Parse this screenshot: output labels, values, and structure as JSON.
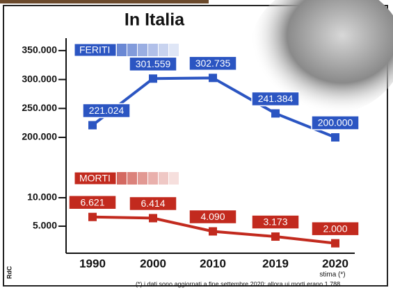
{
  "title": "In Italia",
  "footnote": "(*) i dati sono aggiornati a fine settembre 2020: allora ui morti erano 1.788",
  "credit": "RdC",
  "chart_data": {
    "type": "line",
    "categories": [
      "1990",
      "2000",
      "2010",
      "2019",
      "2020"
    ],
    "category_note": "stima (*)",
    "series": [
      {
        "name": "FERITI",
        "color": "#2b55c2",
        "axis": "y",
        "values": [
          221024,
          301559,
          302735,
          241384,
          200000
        ],
        "value_labels": [
          "221.024",
          "301.559",
          "302.735",
          "241.384",
          "200.000"
        ]
      },
      {
        "name": "MORTI",
        "color": "#c22a1e",
        "axis": "y2",
        "values": [
          6621,
          6414,
          4090,
          3173,
          2000
        ],
        "value_labels": [
          "6.621",
          "6.414",
          "4.090",
          "3.173",
          "2.000"
        ]
      }
    ],
    "ylim": [
      185000,
      365000
    ],
    "yticks": [
      {
        "value": 200000,
        "label": "200.000"
      },
      {
        "value": 250000,
        "label": "250.000"
      },
      {
        "value": 300000,
        "label": "300.000"
      },
      {
        "value": 350000,
        "label": "350.000"
      }
    ],
    "y2lim": [
      250,
      12500
    ],
    "y2ticks": [
      {
        "value": 5000,
        "label": "5.000"
      },
      {
        "value": 10000,
        "label": "10.000"
      }
    ]
  }
}
